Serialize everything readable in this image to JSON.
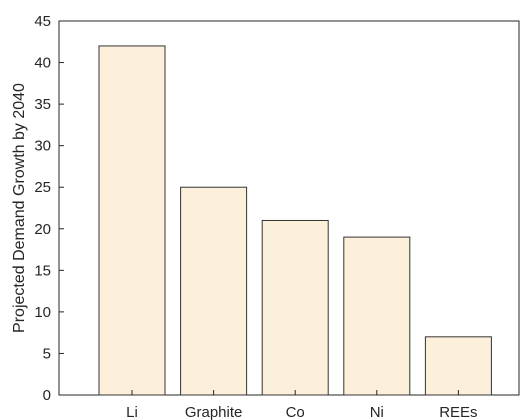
{
  "chart_data": {
    "type": "bar",
    "title": "",
    "xlabel": "",
    "ylabel": "Projected Demand Growth by 2040",
    "categories": [
      "Li",
      "Graphite",
      "Co",
      "Ni",
      "REEs"
    ],
    "values": [
      42,
      25,
      21,
      19,
      7
    ],
    "ylim": [
      0,
      45
    ],
    "yticks": [
      0,
      5,
      10,
      15,
      20,
      25,
      30,
      35,
      40,
      45
    ],
    "grid": false,
    "legend": "none",
    "colors": {
      "bar_fill": "#fdf0db",
      "bar_stroke": "#333333",
      "axis": "#262626",
      "text": "#262626"
    }
  }
}
